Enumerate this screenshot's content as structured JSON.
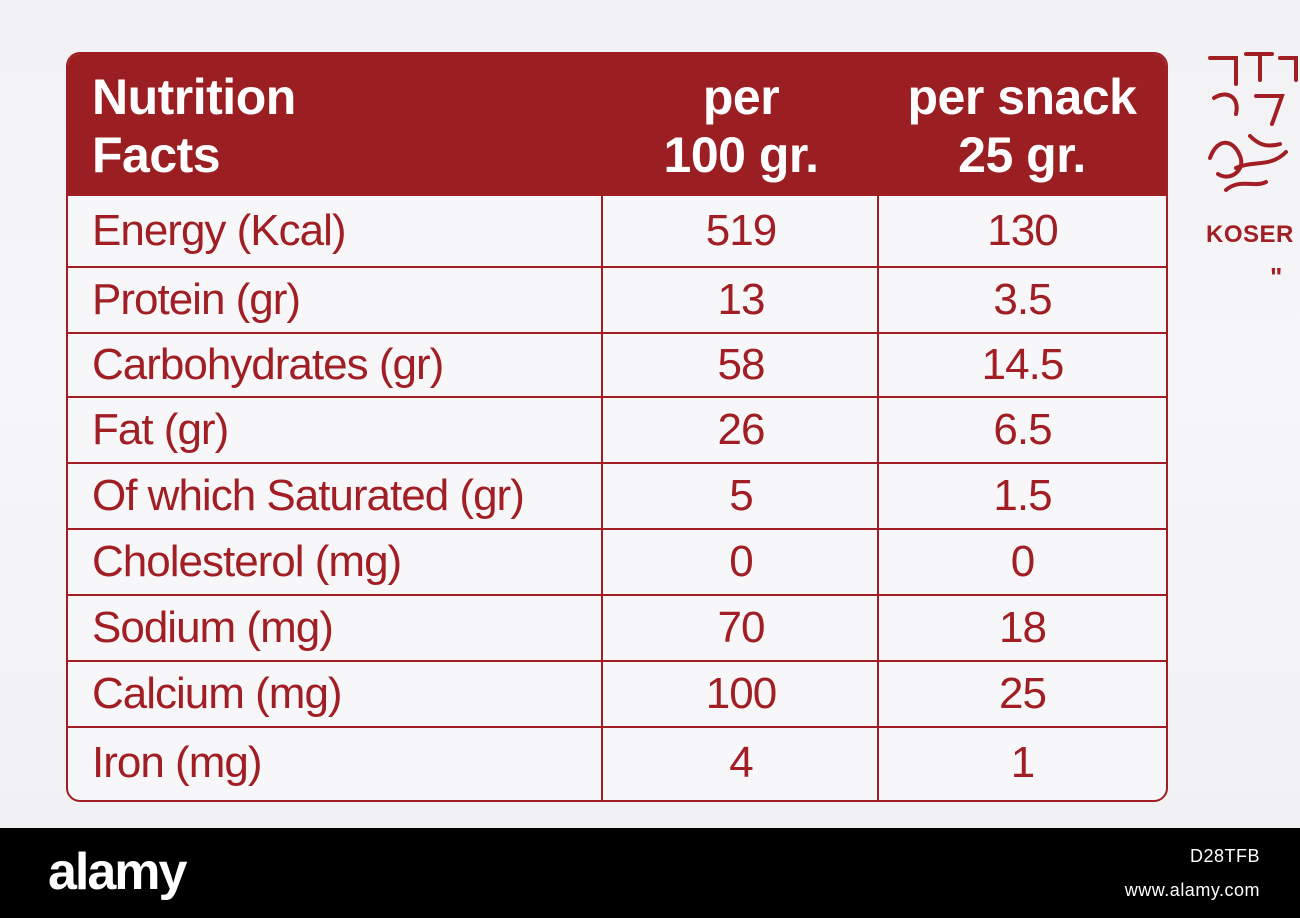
{
  "label": {
    "header": {
      "title_line1": "Nutrition",
      "title_line2": "Facts",
      "col1_line1": "per",
      "col1_line2": "100 gr.",
      "col2_line1": "per snack",
      "col2_line2": "25 gr."
    },
    "rows": [
      {
        "name": "Energy (Kcal)",
        "per100": "519",
        "perSnack": "130"
      },
      {
        "name": "Protein (gr)",
        "per100": "13",
        "perSnack": "3.5"
      },
      {
        "name": "Carbohydrates (gr)",
        "per100": "58",
        "perSnack": "14.5"
      },
      {
        "name": "Fat (gr)",
        "per100": "26",
        "perSnack": "6.5"
      },
      {
        "name": "Of which Saturated (gr)",
        "per100": "5",
        "perSnack": "1.5"
      },
      {
        "name": "Cholesterol (mg)",
        "per100": "0",
        "perSnack": "0"
      },
      {
        "name": "Sodium (mg)",
        "per100": "70",
        "perSnack": "18"
      },
      {
        "name": "Calcium (mg)",
        "per100": "100",
        "perSnack": "25"
      },
      {
        "name": "Iron (mg)",
        "per100": "4",
        "perSnack": "1"
      }
    ],
    "colors": {
      "accent": "#9b1f22",
      "text": "#a11f24"
    }
  },
  "side": {
    "kosher_text": "KOSER",
    "quote_mark": "\"",
    "logo_icon": "kosher-seal-icon"
  },
  "footer": {
    "brand": "alamy",
    "image_code": "D28TFB",
    "url": "www.alamy.com"
  }
}
